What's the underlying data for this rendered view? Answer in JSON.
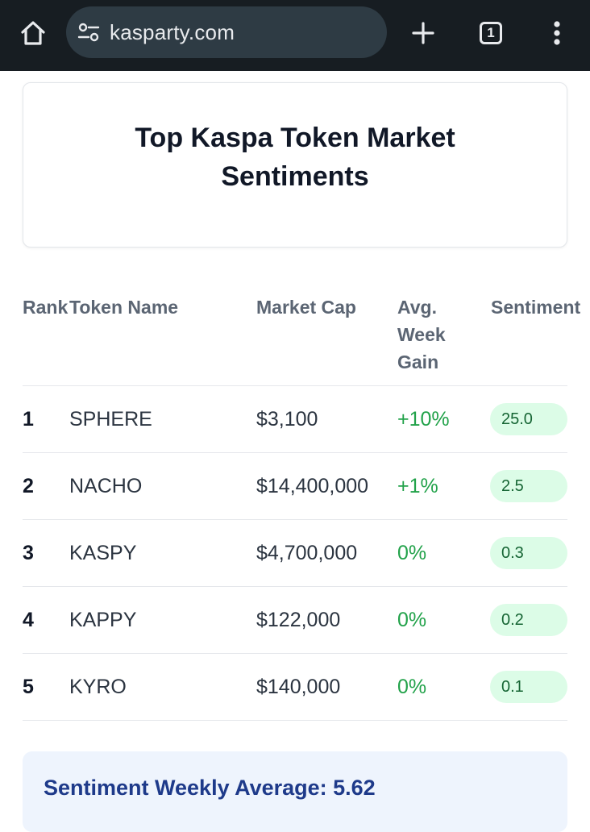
{
  "browser": {
    "url": "kasparty.com",
    "tab_count": "1"
  },
  "card": {
    "title": "Top Kaspa Token Market Sentiments"
  },
  "table": {
    "headers": {
      "rank": "Rank",
      "name": "Token Name",
      "market_cap": "Market Cap",
      "avg_week_gain": "Avg. Week Gain",
      "sentiment": "Sentiment"
    },
    "rows": [
      {
        "rank": "1",
        "name": "SPHERE",
        "market_cap": "$3,100",
        "gain": "+10%",
        "sentiment": "25.0"
      },
      {
        "rank": "2",
        "name": "NACHO",
        "market_cap": "$14,400,000",
        "gain": "+1%",
        "sentiment": "2.5"
      },
      {
        "rank": "3",
        "name": "KASPY",
        "market_cap": "$4,700,000",
        "gain": "0%",
        "sentiment": "0.3"
      },
      {
        "rank": "4",
        "name": "KAPPY",
        "market_cap": "$122,000",
        "gain": "0%",
        "sentiment": "0.2"
      },
      {
        "rank": "5",
        "name": "KYRO",
        "market_cap": "$140,000",
        "gain": "0%",
        "sentiment": "0.1"
      }
    ]
  },
  "summary": {
    "weekly_average": "Sentiment Weekly Average: 5.62"
  },
  "colors": {
    "browser_bar": "#171d22",
    "gain_green": "#22a24a",
    "sentiment_pill_bg": "#dcfce7",
    "summary_text": "#1e3a8a"
  },
  "icons": [
    "home-icon",
    "site-settings-icon",
    "plus-icon",
    "tab-switcher-icon",
    "more-vert-icon"
  ]
}
